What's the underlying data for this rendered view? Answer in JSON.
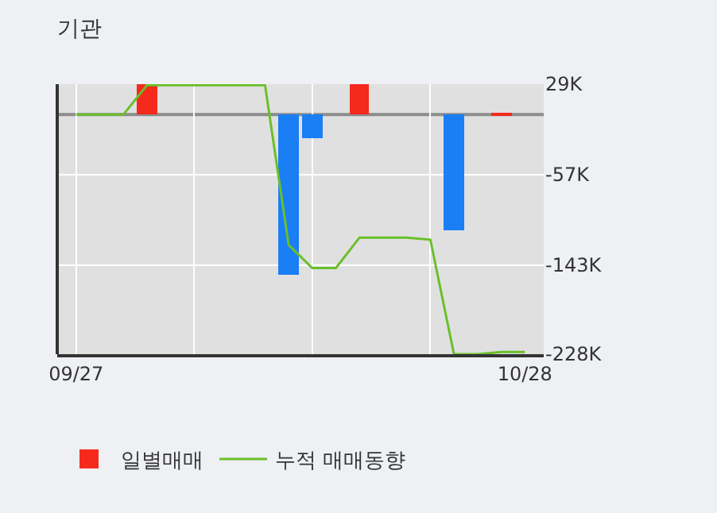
{
  "chart_data": {
    "type": "bar",
    "title": "기관",
    "categories": [
      "09/27",
      null,
      null,
      null,
      null,
      null,
      null,
      null,
      null,
      null,
      null,
      null,
      null,
      null,
      null,
      null,
      null,
      null,
      null,
      "10/28"
    ],
    "series": [
      {
        "name": "일별매매",
        "colors": [
          "#f52a1c",
          "#f52a1c",
          "#f52a1c",
          "#f52a1c",
          "#f52a1c",
          "#f52a1c",
          "#f52a1c",
          "#f52a1c",
          "#f52a1c",
          "#1a7ef5",
          "#1a7ef5",
          "#f52a1c",
          "#f52a1c",
          "#f52a1c",
          "#f52a1c",
          "#f52a1c",
          "#1a7ef5",
          "#f52a1c",
          "#f52a1c",
          "#f52a1c"
        ],
        "values": [
          null,
          null,
          null,
          29,
          null,
          null,
          null,
          null,
          null,
          -152,
          -22,
          null,
          29,
          null,
          null,
          null,
          -110,
          null,
          2,
          null
        ]
      },
      {
        "name": "누적 매매동향",
        "type": "line",
        "color": "#6abf2a",
        "values": [
          0,
          0,
          0,
          28,
          28,
          28,
          28,
          28,
          28,
          -124,
          -146,
          -146,
          -117,
          -117,
          -117,
          -119,
          -228,
          -228,
          -226,
          -226
        ]
      }
    ],
    "ylim": [
      -228,
      29
    ],
    "yticks": [
      {
        "value": 29,
        "label": "29K"
      },
      {
        "value": -57,
        "label": "-57K"
      },
      {
        "value": -143,
        "label": "-143K"
      },
      {
        "value": -228,
        "label": "-228K"
      }
    ],
    "ref_lines": [
      {
        "axis": "y",
        "value": 0,
        "color": "#8c8c8c"
      }
    ],
    "grid": true,
    "legend": "bottom",
    "marker": "none",
    "line_style": "solid"
  }
}
